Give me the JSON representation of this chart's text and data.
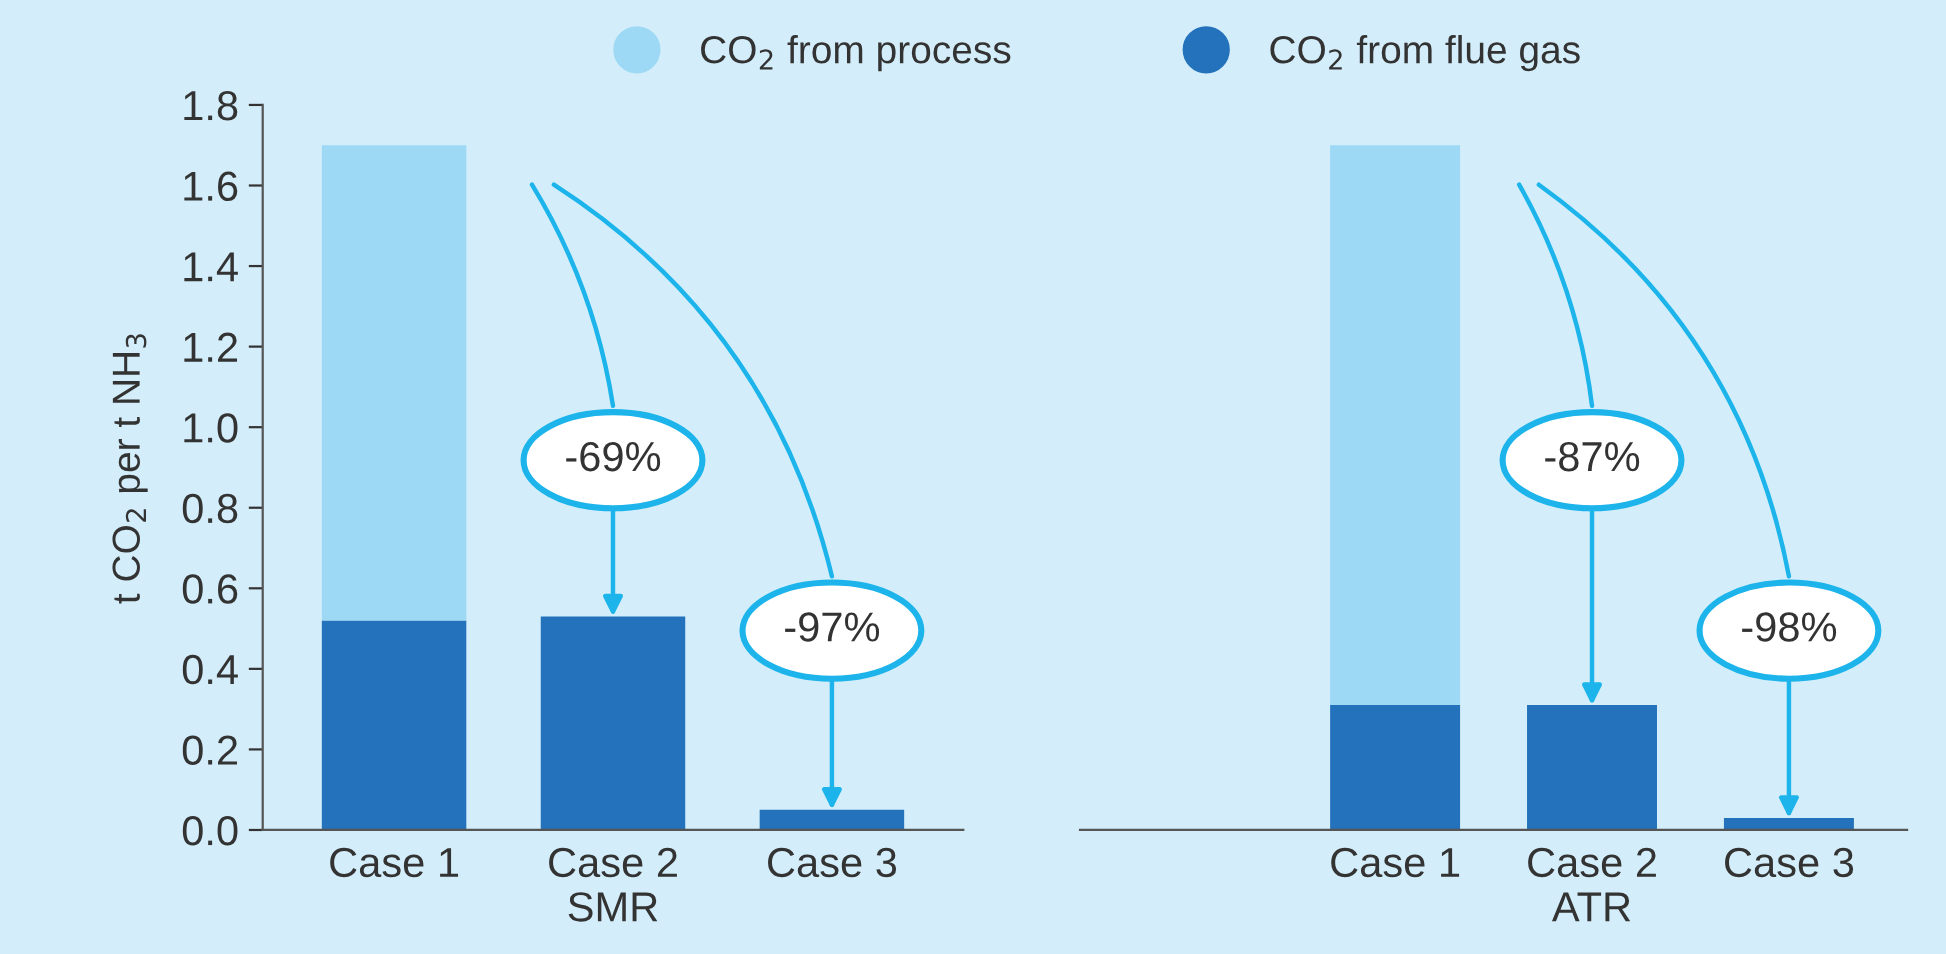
{
  "chart_data": [
    {
      "type": "bar",
      "stacked": true,
      "categories": [
        "Case 1",
        "Case 2",
        "Case 3"
      ],
      "xlabel": "SMR",
      "ylabel": "t CO$_{2}$ per t NH$_{3}$",
      "ylim": [
        0,
        1.8
      ],
      "yticks": [
        {
          "value": 0,
          "label": "0.0"
        },
        0.2,
        0.4,
        0.6,
        0.8,
        {
          "value": 1,
          "label": "1.0"
        },
        1.2,
        1.4,
        1.6,
        1.8
      ],
      "legend": "top",
      "series": [
        {
          "name": "CO$_{2}$ from flue gas",
          "color": "#2472bb",
          "values": [
            0.52,
            0.53,
            0.05
          ]
        },
        {
          "name": "CO$_{2}$ from process",
          "color": "#9dd8f4",
          "values": [
            1.18,
            0,
            0
          ]
        }
      ],
      "annotations": [
        {
          "text": "-69%",
          "x": "Case 2",
          "y": 0.53
        },
        {
          "text": "-97%",
          "x": "Case 3",
          "y": 0.05
        }
      ]
    },
    {
      "type": "bar",
      "stacked": true,
      "categories": [
        "Case 1",
        "Case 2",
        "Case 3"
      ],
      "xlabel": "ATR",
      "ylim": [
        0,
        1.8
      ],
      "tick_labels": "x",
      "series": [
        {
          "color": "#2472bb",
          "values": [
            0.31,
            0.31,
            0.03
          ]
        },
        {
          "color": "#9dd8f4",
          "values": [
            1.39,
            0,
            0
          ]
        }
      ],
      "annotations": [
        {
          "text": "-87%",
          "x": "Case 2",
          "y": 0.31
        },
        {
          "text": "-98%",
          "x": "Case 3",
          "y": 0.03
        }
      ]
    }
  ]
}
